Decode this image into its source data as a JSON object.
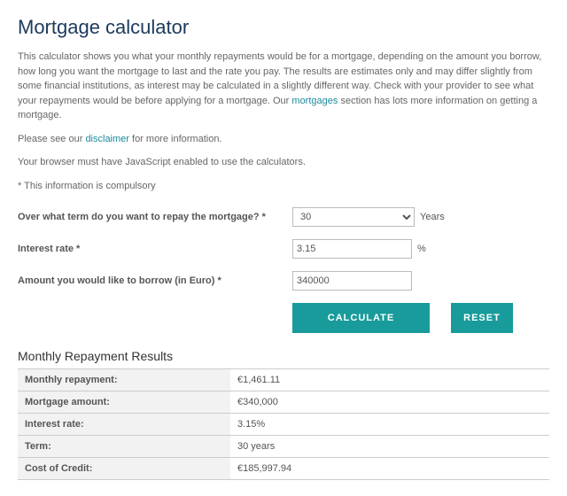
{
  "title": "Mortgage calculator",
  "intro": {
    "p1a": "This calculator shows you what your monthly repayments would be for a mortgage, depending on the amount you borrow, how long you want the mortgage to last and the rate you pay. The results are estimates only and may differ slightly from some financial institutions, as interest may be calculated in a slightly different way. Check with your provider to see what your repayments would be before applying for a mortgage. Our ",
    "p1_link": "mortgages",
    "p1b": " section has lots more information on getting a mortgage.",
    "p2a": "Please see our ",
    "p2_link": "disclaimer",
    "p2b": " for more information.",
    "p3": "Your browser must have JavaScript enabled to use the calculators.",
    "p4": "* This information is compulsory"
  },
  "form": {
    "term_label": "Over what term do you want to repay the mortgage? *",
    "term_value": "30",
    "term_unit": "Years",
    "rate_label": "Interest rate *",
    "rate_value": "3.15",
    "rate_unit": "%",
    "amount_label": "Amount you would like to borrow (in Euro) *",
    "amount_value": "340000",
    "calculate": "CALCULATE",
    "reset": "RESET"
  },
  "results": {
    "heading": "Monthly Repayment Results",
    "rows": [
      {
        "label": "Monthly repayment:",
        "value": "€1,461.11"
      },
      {
        "label": "Mortgage amount:",
        "value": "€340,000"
      },
      {
        "label": "Interest rate:",
        "value": "3.15%"
      },
      {
        "label": "Term:",
        "value": "30 years"
      },
      {
        "label": "Cost of Credit:",
        "value": "€185,997.94"
      }
    ]
  }
}
